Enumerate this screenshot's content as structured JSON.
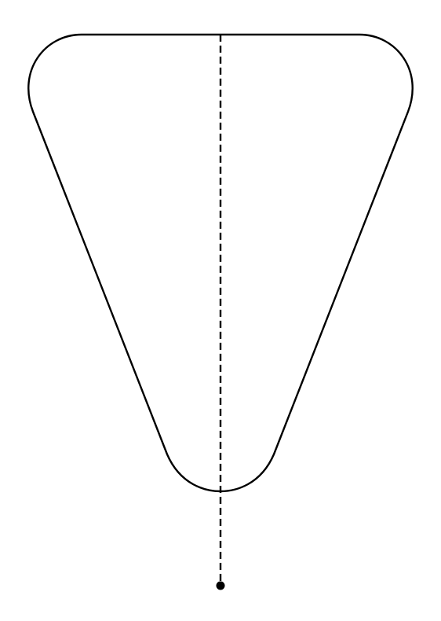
{
  "diagram": {
    "shape": "rounded-inverted-triangle",
    "axis": "vertical-symmetry-line",
    "axis_style": "dashed",
    "endpoint": "dot",
    "colors": {
      "background": "#ffffff",
      "stroke": "#000000"
    }
  }
}
